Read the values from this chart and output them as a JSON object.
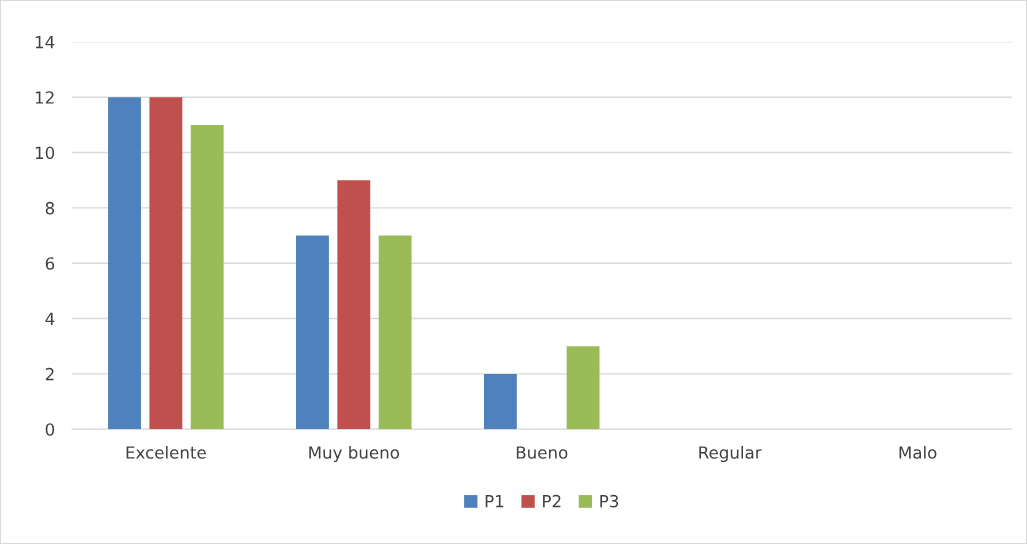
{
  "chart_data": {
    "type": "bar",
    "categories": [
      "Excelente",
      "Muy bueno",
      "Bueno",
      "Regular",
      "Malo"
    ],
    "series": [
      {
        "name": "P1",
        "color": "#4f81bd",
        "values": [
          12,
          7,
          2,
          0,
          0
        ]
      },
      {
        "name": "P2",
        "color": "#c0504d",
        "values": [
          12,
          9,
          0,
          0,
          0
        ]
      },
      {
        "name": "P3",
        "color": "#9bbb59",
        "values": [
          11,
          7,
          3,
          0,
          0
        ]
      }
    ],
    "ylim": [
      0,
      14
    ],
    "yticks": [
      0,
      2,
      4,
      6,
      8,
      10,
      12,
      14
    ],
    "grid": "y",
    "legend": "bottom"
  }
}
